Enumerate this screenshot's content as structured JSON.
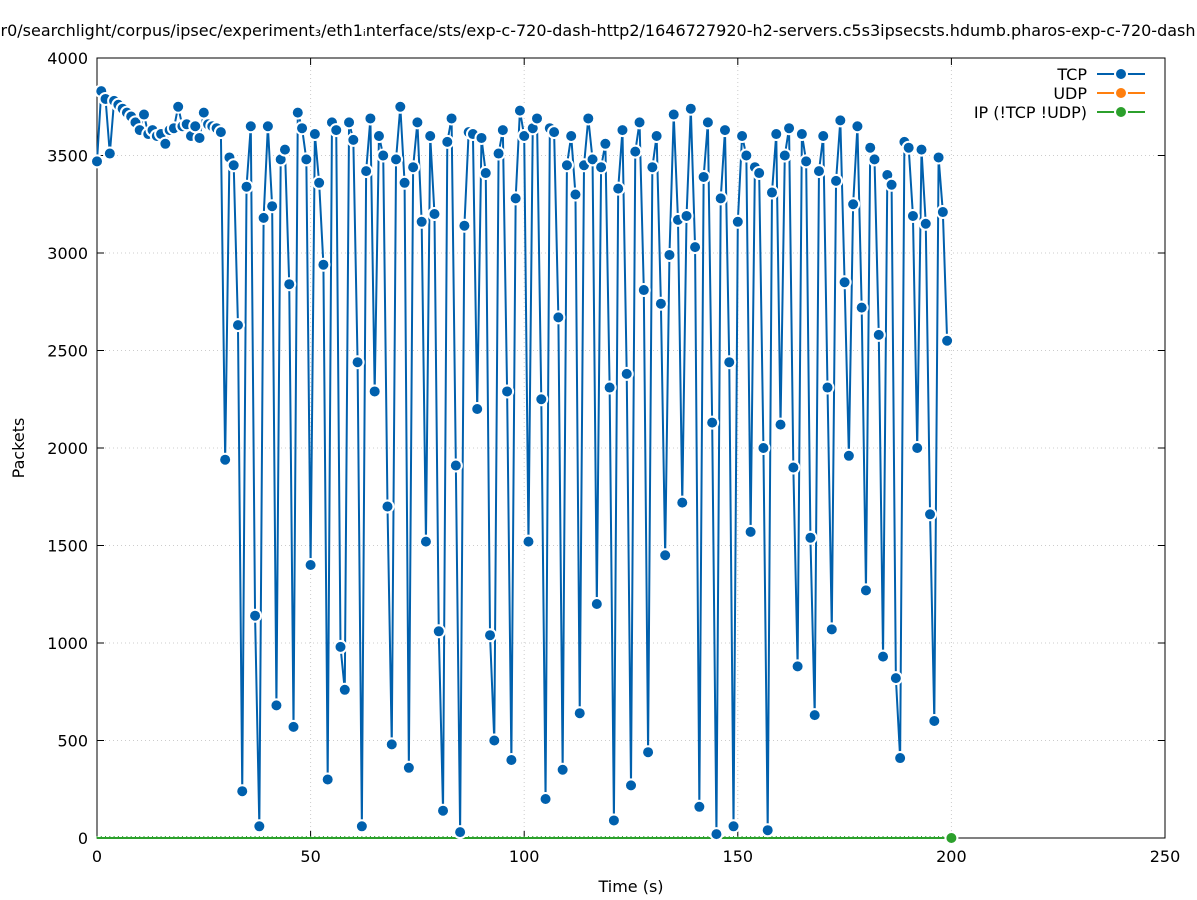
{
  "chart_data": {
    "type": "line",
    "title": "r0/searchlight/corpus/ipsec/experiment_3/eth1_interface/sts/exp-c-720-dash-http2/1646727920-h2-servers.c5s3ipsecsts.hdumb.pharos-exp-c-720-dash",
    "title_display": "r0/searchlight/corpus/ipsec/experiment₃/eth1ᵢnterface/sts/exp-c-720-dash-http2/1646727920-h2-servers.c5s3ipsecsts.hdumb.pharos-exp-c-720-dash",
    "xlabel": "Time (s)",
    "ylabel": "Packets",
    "xlim": [
      0,
      250
    ],
    "ylim": [
      0,
      4000
    ],
    "xticks": [
      0,
      50,
      100,
      150,
      200,
      250
    ],
    "yticks": [
      0,
      500,
      1000,
      1500,
      2000,
      2500,
      3000,
      3500,
      4000
    ],
    "grid": true,
    "legend_position": "top-right",
    "series": [
      {
        "name": "TCP",
        "color": "#0060ad",
        "x_start": 0,
        "x_step": 1,
        "values": [
          3470,
          3830,
          3790,
          3510,
          3780,
          3760,
          3740,
          3720,
          3700,
          3670,
          3630,
          3710,
          3610,
          3630,
          3600,
          3610,
          3560,
          3630,
          3640,
          3750,
          3650,
          3660,
          3600,
          3650,
          3590,
          3720,
          3660,
          3650,
          3640,
          3620,
          1940,
          3490,
          3450,
          2630,
          240,
          3340,
          3650,
          1140,
          60,
          3180,
          3650,
          3240,
          680,
          3480,
          3530,
          2840,
          570,
          3720,
          3640,
          3480,
          1400,
          3610,
          3360,
          2940,
          300,
          3670,
          3630,
          980,
          760,
          3670,
          3580,
          2440,
          60,
          3420,
          3690,
          2290,
          3600,
          3500,
          1700,
          480,
          3480,
          3750,
          3360,
          360,
          3440,
          3670,
          3160,
          1520,
          3600,
          3200,
          1060,
          140,
          3570,
          3690,
          1910,
          30,
          3140,
          3620,
          3610,
          2200,
          3590,
          3410,
          1040,
          500,
          3510,
          3630,
          2290,
          400,
          3280,
          3730,
          3600,
          1520,
          3640,
          3690,
          2250,
          200,
          3640,
          3620,
          2670,
          350,
          3450,
          3600,
          3300,
          640,
          3450,
          3690,
          3480,
          1200,
          3440,
          3560,
          2310,
          90,
          3330,
          3630,
          2380,
          270,
          3520,
          3670,
          2810,
          440,
          3440,
          3600,
          2740,
          1450,
          2990,
          3710,
          3170,
          1720,
          3190,
          3740,
          3030,
          160,
          3390,
          3670,
          2130,
          20,
          3280,
          3630,
          2440,
          60,
          3160,
          3600,
          3500,
          1570,
          3440,
          3410,
          2000,
          40,
          3310,
          3610,
          2120,
          3500,
          3640,
          1900,
          880,
          3610,
          3470,
          1540,
          630,
          3420,
          3600,
          2310,
          1070,
          3370,
          3680,
          2850,
          1960,
          3250,
          3650,
          2720,
          1270,
          3540,
          3480,
          2580,
          930,
          3400,
          3350,
          820,
          410,
          3570,
          3540,
          3190,
          2000,
          3530,
          3150,
          1660,
          600,
          3490,
          3210,
          2550
        ]
      },
      {
        "name": "UDP",
        "color": "#ff7f0e",
        "x_start": 0,
        "x_step": 1,
        "values": []
      },
      {
        "name": "IP (!TCP  !UDP)",
        "color": "#2ca02c",
        "x_start": 0,
        "x_step": 1,
        "values": [
          0,
          0,
          0,
          0,
          0,
          0,
          0,
          0,
          0,
          0,
          0,
          0,
          0,
          0,
          0,
          0,
          0,
          0,
          0,
          0,
          0,
          0,
          0,
          0,
          0,
          0,
          0,
          0,
          0,
          0,
          0,
          0,
          0,
          0,
          0,
          0,
          0,
          0,
          0,
          0,
          0,
          0,
          0,
          0,
          0,
          0,
          0,
          0,
          0,
          0,
          0,
          0,
          0,
          0,
          0,
          0,
          0,
          0,
          0,
          0,
          0,
          0,
          0,
          0,
          0,
          0,
          0,
          0,
          0,
          0,
          0,
          0,
          0,
          0,
          0,
          0,
          0,
          0,
          0,
          0,
          0,
          0,
          0,
          0,
          0,
          0,
          0,
          0,
          0,
          0,
          0,
          0,
          0,
          0,
          0,
          0,
          0,
          0,
          0,
          0,
          0,
          0,
          0,
          0,
          0,
          0,
          0,
          0,
          0,
          0,
          0,
          0,
          0,
          0,
          0,
          0,
          0,
          0,
          0,
          0,
          0,
          0,
          0,
          0,
          0,
          0,
          0,
          0,
          0,
          0,
          0,
          0,
          0,
          0,
          0,
          0,
          0,
          0,
          0,
          0,
          0,
          0,
          0,
          0,
          0,
          0,
          0,
          0,
          0,
          0,
          0,
          0,
          0,
          0,
          0,
          0,
          0,
          0,
          0,
          0,
          0,
          0,
          0,
          0,
          0,
          0,
          0,
          0,
          0,
          0,
          0,
          0,
          0,
          0,
          0,
          0,
          0,
          0,
          0,
          0,
          0,
          0,
          0,
          0,
          0,
          0,
          0,
          0,
          0,
          0,
          0,
          0,
          0,
          0,
          0,
          0,
          0,
          0,
          0,
          0,
          0
        ]
      }
    ]
  }
}
